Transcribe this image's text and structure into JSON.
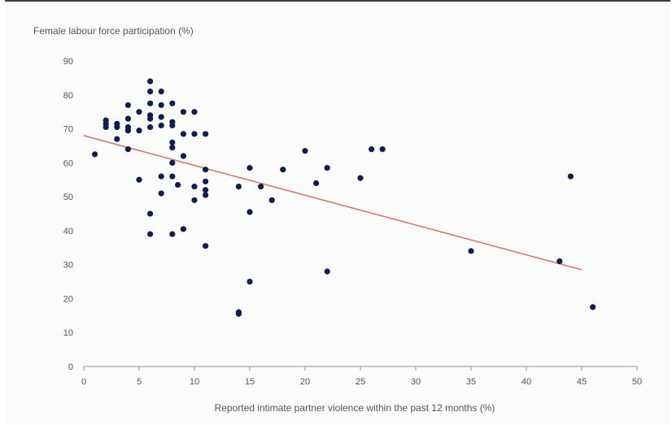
{
  "chart_data": {
    "type": "scatter",
    "title": "",
    "ylabel": "Female labour force participation (%)",
    "xlabel": "Reported intimate partner violence within the past 12 months (%)",
    "xlim": [
      0,
      50
    ],
    "ylim": [
      0,
      90
    ],
    "xticks": [
      0,
      5,
      10,
      15,
      20,
      25,
      30,
      35,
      40,
      45,
      50
    ],
    "yticks": [
      0,
      10,
      20,
      30,
      40,
      50,
      60,
      70,
      80,
      90
    ],
    "grid": false,
    "colors": {
      "points": "#0d1f4e",
      "trend": "#e06a5a",
      "axis": "#999999"
    },
    "trendline": {
      "x": [
        0,
        45
      ],
      "y": [
        68,
        28.5
      ]
    },
    "points": [
      [
        1,
        62.5
      ],
      [
        2,
        72.5
      ],
      [
        2,
        71.5
      ],
      [
        2,
        70.5
      ],
      [
        3,
        71.5
      ],
      [
        3,
        70.5
      ],
      [
        3,
        67
      ],
      [
        4,
        77
      ],
      [
        4,
        73
      ],
      [
        4,
        70.5
      ],
      [
        4,
        69.5
      ],
      [
        4,
        64
      ],
      [
        5,
        75
      ],
      [
        5,
        69.5
      ],
      [
        5,
        55
      ],
      [
        6,
        84
      ],
      [
        6,
        81
      ],
      [
        6,
        77.5
      ],
      [
        6,
        74
      ],
      [
        6,
        73
      ],
      [
        6,
        70.5
      ],
      [
        6,
        45
      ],
      [
        6,
        39
      ],
      [
        7,
        81
      ],
      [
        7,
        77
      ],
      [
        7,
        73.5
      ],
      [
        7,
        71
      ],
      [
        7,
        56
      ],
      [
        7,
        51
      ],
      [
        8,
        77.5
      ],
      [
        8,
        72
      ],
      [
        8,
        71
      ],
      [
        8,
        66
      ],
      [
        8,
        64.5
      ],
      [
        8,
        60
      ],
      [
        8,
        56
      ],
      [
        8,
        39
      ],
      [
        8.5,
        53.5
      ],
      [
        9,
        75
      ],
      [
        9,
        68.5
      ],
      [
        9,
        62
      ],
      [
        9,
        40.5
      ],
      [
        10,
        75
      ],
      [
        10,
        68.5
      ],
      [
        10,
        53
      ],
      [
        10,
        49
      ],
      [
        11,
        68.5
      ],
      [
        11,
        58
      ],
      [
        11,
        54.5
      ],
      [
        11,
        52
      ],
      [
        11,
        50.5
      ],
      [
        11,
        35.5
      ],
      [
        14,
        53
      ],
      [
        14,
        16
      ],
      [
        14,
        15.5
      ],
      [
        15,
        58.5
      ],
      [
        15,
        45.5
      ],
      [
        15,
        25
      ],
      [
        16,
        53
      ],
      [
        17,
        49
      ],
      [
        18,
        58
      ],
      [
        20,
        63.5
      ],
      [
        21,
        54
      ],
      [
        22,
        58.5
      ],
      [
        22,
        28
      ],
      [
        25,
        55.5
      ],
      [
        26,
        64
      ],
      [
        27,
        64
      ],
      [
        35,
        34
      ],
      [
        43,
        31
      ],
      [
        44,
        56
      ],
      [
        46,
        17.5
      ]
    ]
  }
}
